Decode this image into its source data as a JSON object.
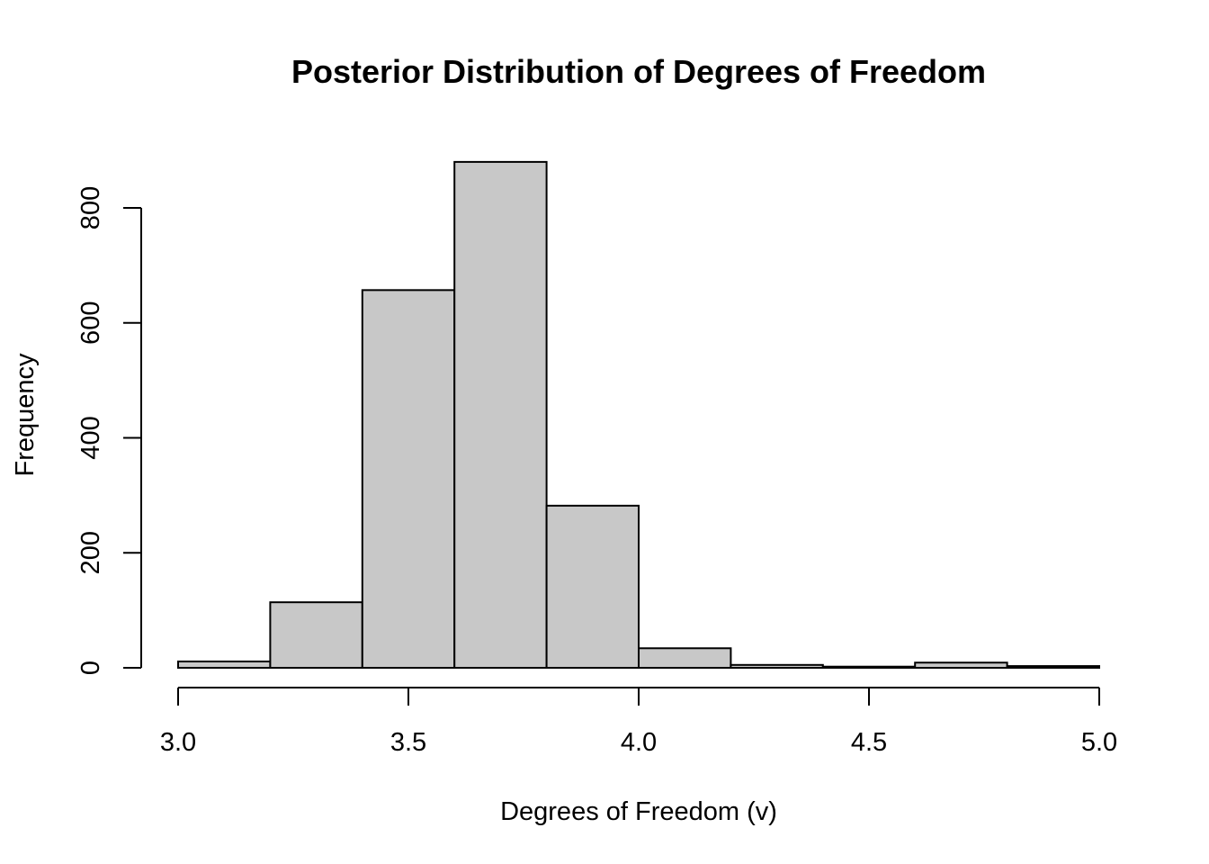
{
  "chart_data": {
    "type": "bar",
    "title": "Posterior Distribution of Degrees of Freedom",
    "xlabel": "Degrees of Freedom (v)",
    "ylabel": "Frequency",
    "xlim": [
      3.0,
      5.0
    ],
    "ylim": [
      0,
      880
    ],
    "x_ticks": [
      "3.0",
      "3.5",
      "4.0",
      "4.5",
      "5.0"
    ],
    "y_ticks": [
      "0",
      "200",
      "400",
      "600",
      "800"
    ],
    "bin_edges": [
      3.0,
      3.2,
      3.4,
      3.6,
      3.8,
      4.0,
      4.2,
      4.4,
      4.6,
      4.8,
      5.0
    ],
    "values": [
      11,
      114,
      657,
      880,
      282,
      34,
      5,
      2,
      9,
      3
    ],
    "bar_color": "#c8c8c8",
    "grid": false
  }
}
